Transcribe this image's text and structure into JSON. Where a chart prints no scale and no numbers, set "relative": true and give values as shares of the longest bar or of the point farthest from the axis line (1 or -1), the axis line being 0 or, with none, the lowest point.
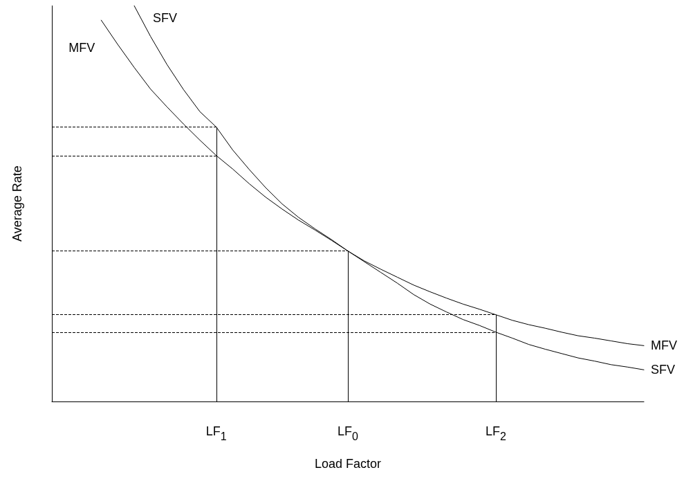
{
  "chart_data": {
    "type": "line",
    "relative": true,
    "xlabel": "Load Factor",
    "ylabel": "Average Rate",
    "legend": false,
    "grid": false,
    "marker": "none",
    "line_style": "solid",
    "categories": [
      null,
      null,
      null,
      null,
      null,
      null,
      null,
      null,
      null,
      null,
      "LF$_{1}$",
      null,
      null,
      null,
      null,
      null,
      null,
      null,
      "LF$_{0}$",
      null,
      null,
      null,
      null,
      null,
      null,
      null,
      null,
      "LF$_{2}$",
      null,
      null,
      null,
      null,
      null,
      null,
      null,
      null,
      null
    ],
    "series": [
      {
        "name": "MFV",
        "color": "#000000",
        "values": [
          null,
          null,
          null,
          0.963,
          0.902,
          0.844,
          0.789,
          0.744,
          0.701,
          0.66,
          0.621,
          0.587,
          0.55,
          0.516,
          0.486,
          0.458,
          0.433,
          0.407,
          0.38,
          0.355,
          0.334,
          0.314,
          0.294,
          0.277,
          0.261,
          0.246,
          0.233,
          0.219,
          0.205,
          0.194,
          0.185,
          0.175,
          0.166,
          0.16,
          0.153,
          0.146,
          0.141
        ]
      },
      {
        "name": "SFV",
        "color": "#000000",
        "values": [
          null,
          null,
          null,
          null,
          null,
          1,
          0.922,
          0.851,
          0.788,
          0.732,
          0.693,
          0.635,
          0.586,
          0.54,
          0.499,
          0.465,
          0.436,
          0.409,
          0.38,
          0.353,
          0.326,
          0.299,
          0.27,
          0.246,
          0.226,
          0.207,
          0.192,
          0.175,
          0.16,
          0.144,
          0.132,
          0.121,
          0.11,
          0.102,
          0.093,
          0.087,
          0.08
        ]
      }
    ],
    "ref_lines": [
      {
        "axis": "x",
        "value": "LF$_{1}$",
        "line_style": "solid"
      },
      {
        "axis": "x",
        "value": "LF$_{0}$",
        "line_style": "solid"
      },
      {
        "axis": "x",
        "value": "LF$_{2}$",
        "line_style": "solid"
      },
      {
        "axis": "y",
        "value": 0.693,
        "line_style": "dashed"
      },
      {
        "axis": "y",
        "value": 0.621,
        "line_style": "dashed"
      },
      {
        "axis": "y",
        "value": 0.38,
        "line_style": "dashed"
      },
      {
        "axis": "y",
        "value": 0.219,
        "line_style": "dashed"
      },
      {
        "axis": "y",
        "value": 0.175,
        "line_style": "dashed"
      }
    ]
  }
}
